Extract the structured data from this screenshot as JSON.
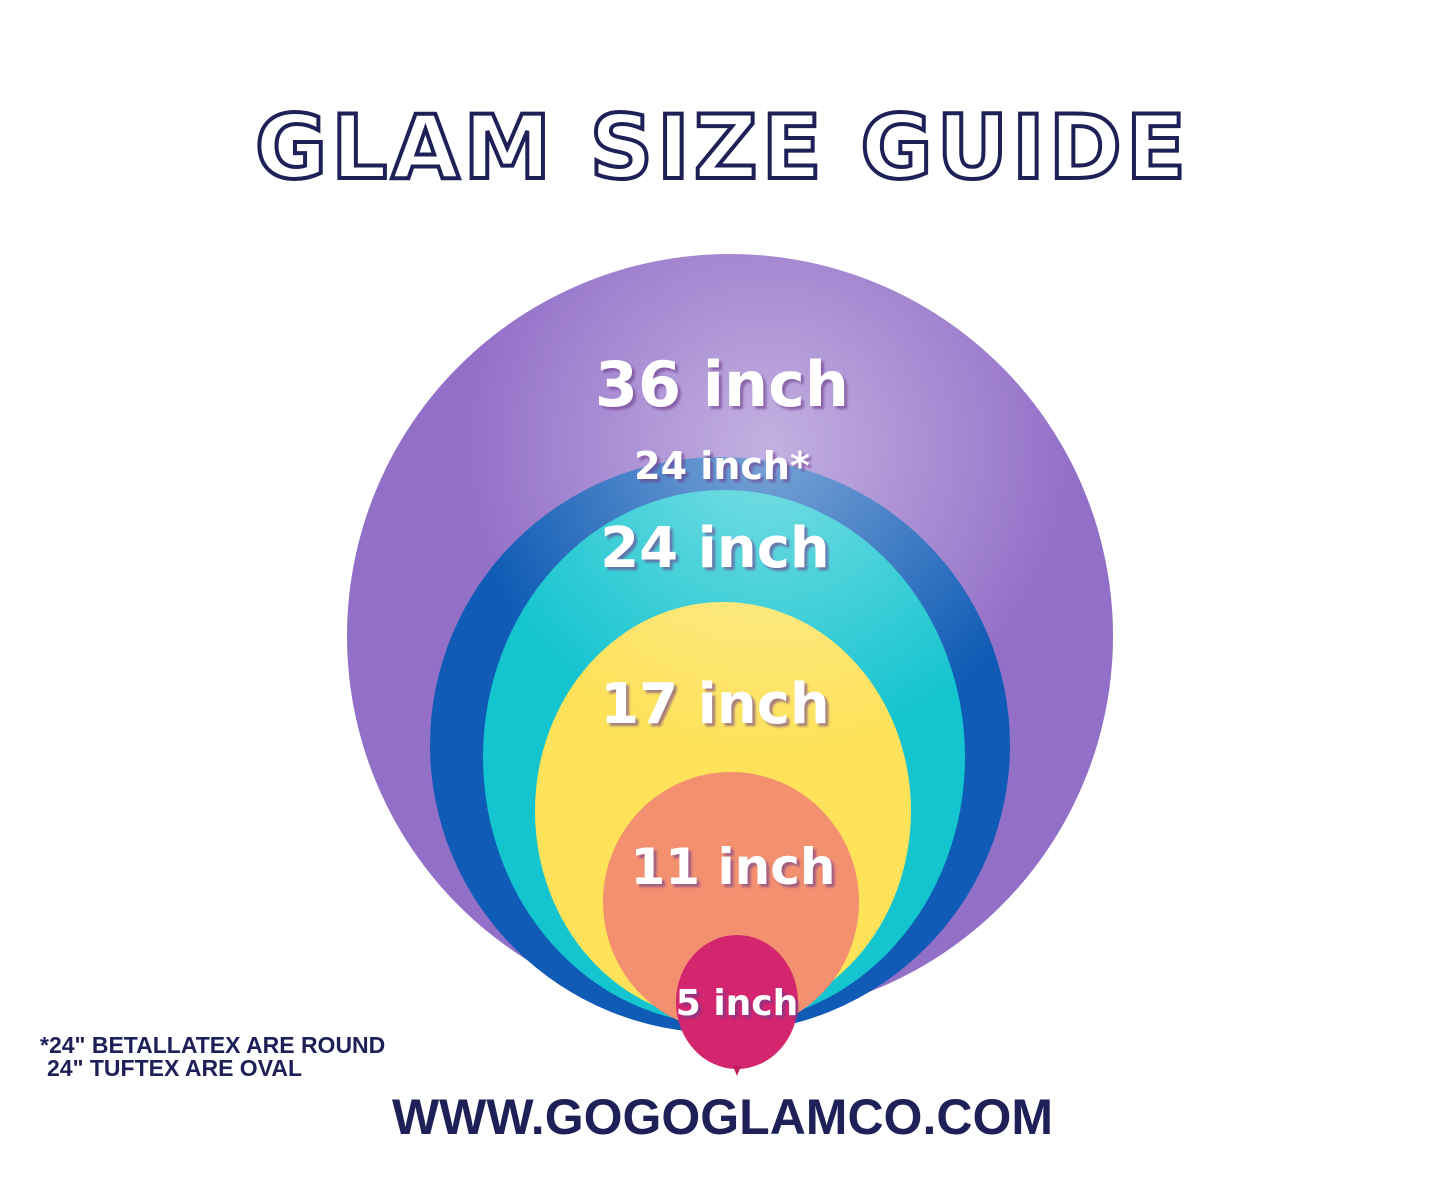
{
  "title": "GLAM SIZE GUIDE",
  "balloons": [
    {
      "label": "36 inch",
      "color": "#9370c8"
    },
    {
      "label": "24 inch*",
      "color": "#0f5bb5"
    },
    {
      "label": "24 inch",
      "color": "#14c4cf"
    },
    {
      "label": "17 inch",
      "color": "#fde25a"
    },
    {
      "label": "11 inch",
      "color": "#f29070"
    },
    {
      "label": "5 inch",
      "color": "#d4256f"
    }
  ],
  "footnote": {
    "line1": "*24\" BETALLATEX ARE ROUND",
    "line2": "24\" TUFTEX ARE OVAL"
  },
  "website": "WWW.GOGOGLAMCO.COM",
  "text_color": "#1e2057"
}
